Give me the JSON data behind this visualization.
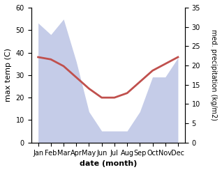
{
  "months": [
    "Jan",
    "Feb",
    "Mar",
    "Apr",
    "May",
    "Jun",
    "Jul",
    "Aug",
    "Sep",
    "Oct",
    "Nov",
    "Dec"
  ],
  "max_temp": [
    38,
    37,
    34,
    29,
    24,
    20,
    20,
    22,
    27,
    32,
    35,
    38
  ],
  "precipitation": [
    31,
    28,
    32,
    21,
    8,
    3,
    3,
    3,
    8,
    17,
    17,
    22
  ],
  "temp_color": "#c0504d",
  "precip_fill_color": "#c5cce8",
  "temp_ylim": [
    0,
    60
  ],
  "precip_ylim": [
    0,
    35
  ],
  "temp_yticks": [
    0,
    10,
    20,
    30,
    40,
    50,
    60
  ],
  "precip_yticks": [
    0,
    5,
    10,
    15,
    20,
    25,
    30,
    35
  ],
  "xlabel": "date (month)",
  "ylabel_left": "max temp (C)",
  "ylabel_right": "med. precipitation (kg/m2)",
  "background_color": "#ffffff"
}
